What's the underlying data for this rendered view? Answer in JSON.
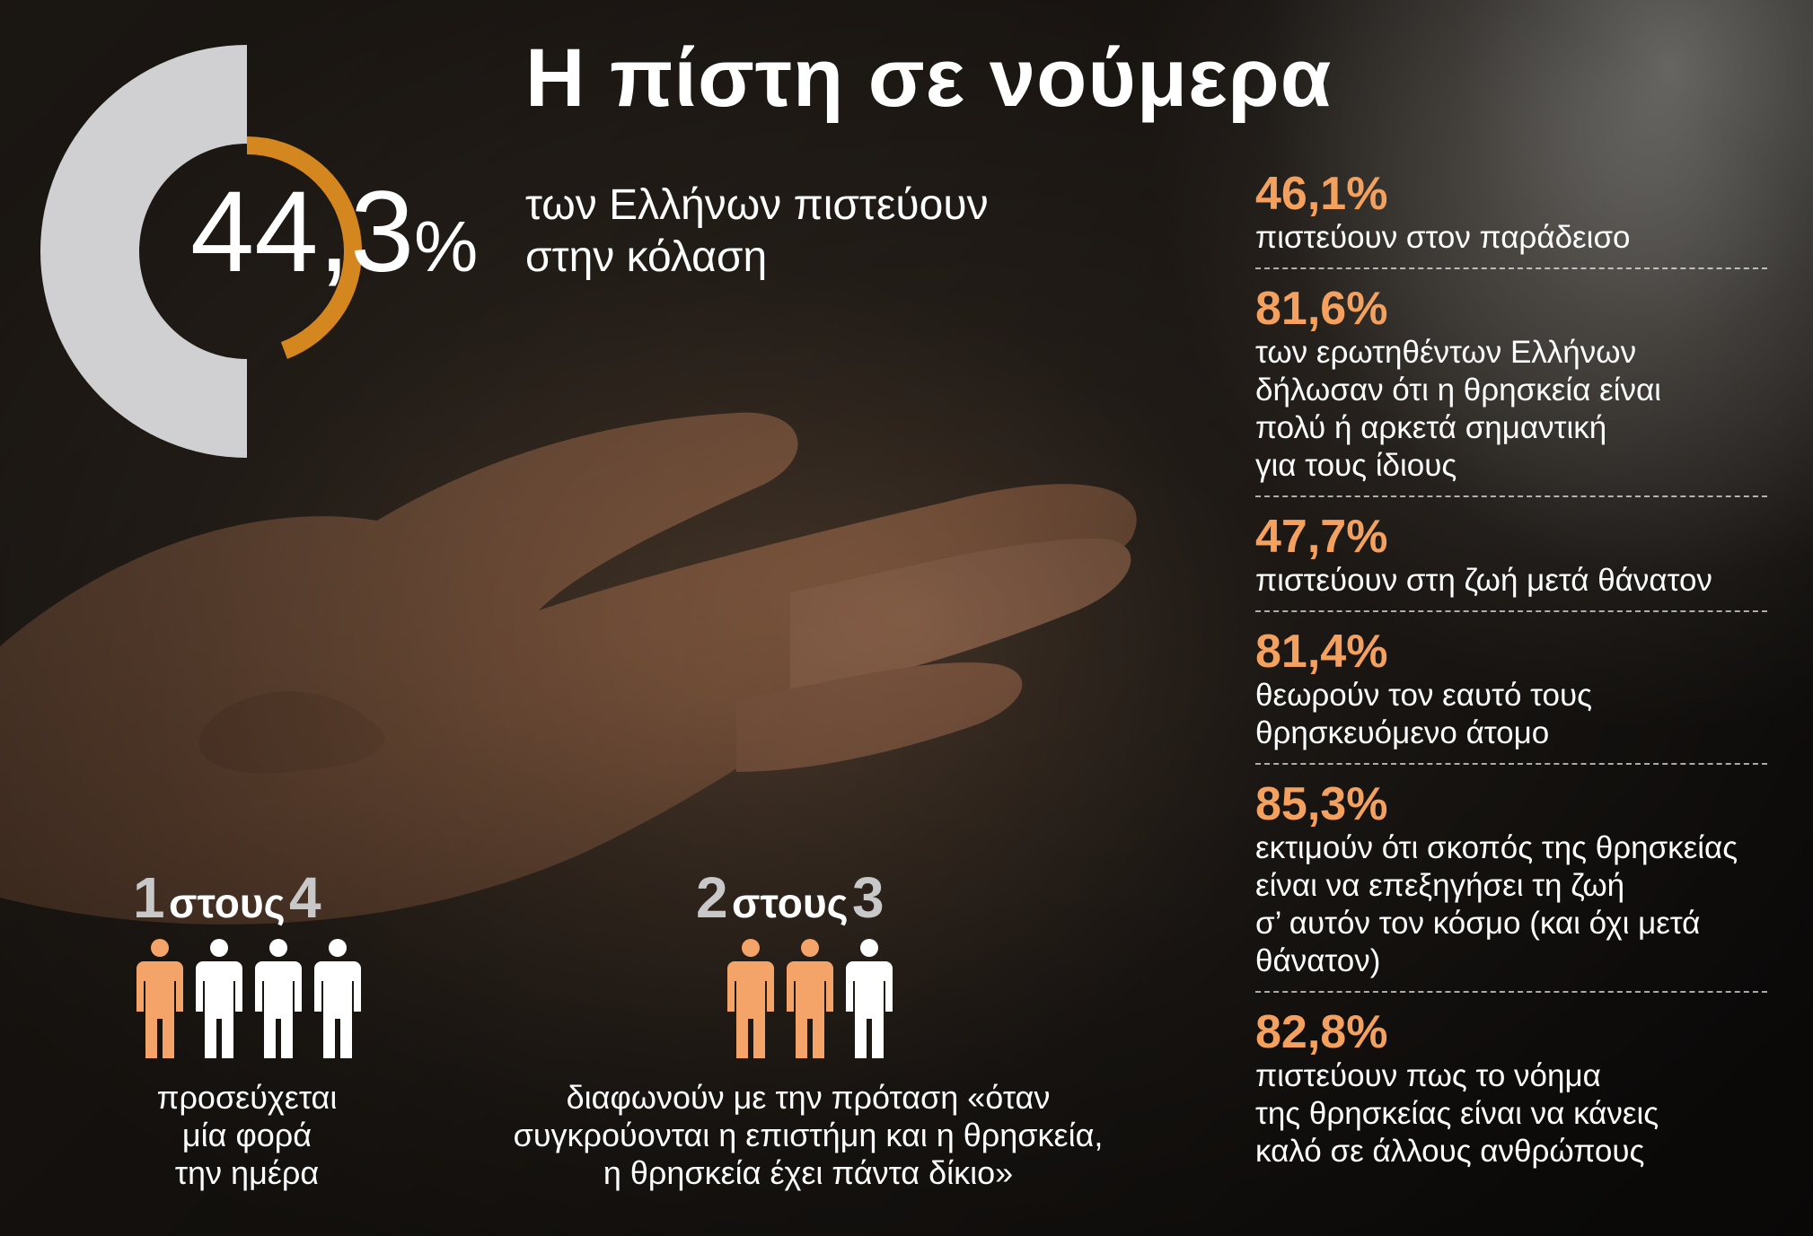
{
  "title": "Η πίστη σε νούμερα",
  "headline": {
    "value": "44,3",
    "symbol": "%",
    "fraction": 0.443,
    "text_line1": "των Ελλήνων πιστεύουν",
    "text_line2": "στην κόλαση"
  },
  "stats": [
    {
      "value": "46,1%",
      "lines": [
        "πιστεύουν στον παράδεισο"
      ]
    },
    {
      "value": "81,6%",
      "lines": [
        "των ερωτηθέντων Ελλήνων",
        "δήλωσαν ότι η θρησκεία είναι",
        "πολύ ή αρκετά σημαντική",
        "για τους ίδιους"
      ]
    },
    {
      "value": "47,7%",
      "lines": [
        "πιστεύουν στη ζωή μετά θάνατον"
      ]
    },
    {
      "value": "81,4%",
      "lines": [
        "θεωρούν τον εαυτό τους",
        "θρησκευόμενο άτομο"
      ]
    },
    {
      "value": "85,3%",
      "lines": [
        "εκτιμούν ότι σκοπός της θρησκείας",
        "είναι να επεξηγήσει τη ζωή",
        "σ’ αυτόν τον κόσμο (και όχι μετά",
        "θάνατον)"
      ]
    },
    {
      "value": "82,8%",
      "lines": [
        "πιστεύουν πως το νόημα",
        "της θρησκείας είναι να κάνεις",
        "καλό σε άλλους ανθρώπους"
      ]
    }
  ],
  "ratio1": {
    "num": "1",
    "word": "στους",
    "den": "4",
    "people": [
      "orange",
      "white",
      "white",
      "white"
    ],
    "caption": [
      "προσεύχεται",
      "μία φορά",
      "την ημέρα"
    ]
  },
  "ratio2": {
    "num": "2",
    "word": "στους",
    "den": "3",
    "people": [
      "orange",
      "orange",
      "white"
    ],
    "caption": [
      "διαφωνούν με την πρόταση «όταν",
      "συγκρούονται η επιστήμη και η θρησκεία,",
      "η θρησκεία έχει  πάντα δίκιο»"
    ]
  },
  "colors": {
    "accent_orange": "#d4861f",
    "stat_value": "#f4a15f",
    "person_orange": "#f4a469",
    "donut_gray": "#d0d0d2"
  }
}
